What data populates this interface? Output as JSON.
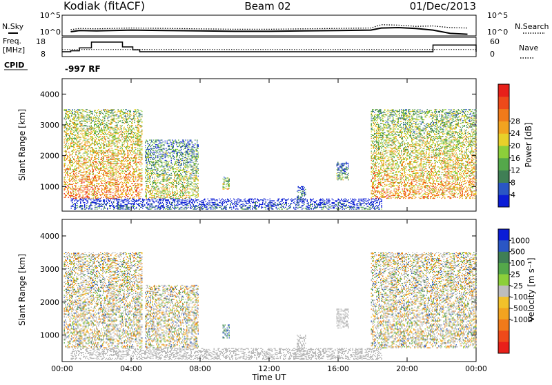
{
  "header": {
    "station": "Kodiak (fitACF)",
    "beam": "Beam 02",
    "date": "01/Dec/2013"
  },
  "top_panel": {
    "left_label_1": "N.Sky",
    "left_label_2": "Freq.",
    "left_label_3": "[MHz]",
    "left_label_4": "CPID",
    "right_label_1": "N.Search",
    "right_label_2": "Nave",
    "noise_ticks_left": [
      "10^5",
      "10^0"
    ],
    "noise_ticks_right": [
      "10^5",
      "10^0"
    ],
    "freq_ticks": [
      "18",
      "8"
    ],
    "nave_ticks": [
      "60",
      "0"
    ],
    "cpid_text": "-997 RF"
  },
  "colors": {
    "power_scale": [
      "#0b1cd6",
      "#2a56c4",
      "#3f7f55",
      "#54a84a",
      "#8ccf3a",
      "#e8d02a",
      "#f2a320",
      "#f07a1a",
      "#ee4a1a",
      "#e8201a"
    ],
    "velocity_scale": [
      "#0b1cd6",
      "#2a56c4",
      "#3f7f55",
      "#54a84a",
      "#8ccf3a",
      "#bdbdbd",
      "#f2c12a",
      "#f2a320",
      "#f07a1a",
      "#ee4a1a",
      "#e8201a"
    ],
    "ground_scatter": "#b8b8b8"
  },
  "chart_data": [
    {
      "type": "line",
      "name": "noise",
      "x_unit": "hours UT",
      "series": [
        {
          "name": "N.Sky",
          "x": [
            0.5,
            1,
            2,
            4,
            6,
            8,
            10,
            12,
            14,
            16,
            17.9,
            18.5,
            19.5,
            20.5,
            21.5,
            22.5,
            23.5
          ],
          "y": [
            1.0,
            1.3,
            1.2,
            1.4,
            1.3,
            1.2,
            1.1,
            1.1,
            1.2,
            1.3,
            1.4,
            1.9,
            2.0,
            1.8,
            1.4,
            0.6,
            0.4
          ]
        },
        {
          "name": "N.Search",
          "x": [
            0.5,
            1,
            2,
            4,
            6,
            8,
            10,
            12,
            14,
            16,
            17.9,
            18.5,
            19.5,
            20.5,
            21.5,
            22.5,
            23.5
          ],
          "y": [
            1.5,
            1.8,
            1.7,
            1.9,
            1.8,
            1.7,
            1.6,
            1.6,
            1.7,
            1.8,
            1.9,
            2.7,
            2.6,
            2.3,
            2.4,
            2.0,
            1.9
          ]
        }
      ]
    },
    {
      "type": "line",
      "name": "frequency",
      "series": [
        {
          "name": "Freq.",
          "x": [
            0.0,
            0.5,
            1.0,
            1.7,
            3.5,
            4.1,
            4.5,
            20.9,
            21.5,
            24
          ],
          "y": [
            10.5,
            11.0,
            12.5,
            15.5,
            13.0,
            11.5,
            10.5,
            10.5,
            14.0,
            10.5
          ]
        },
        {
          "name": "Nave",
          "x": [
            0,
            24
          ],
          "y": [
            22,
            22
          ]
        }
      ]
    },
    {
      "type": "heatmap",
      "name": "power",
      "xlim": [
        0,
        24
      ],
      "ylim": [
        200,
        4500
      ],
      "xlabel": "",
      "ylabel": "Slant Range [km]",
      "x_ticks": [
        "00:00",
        "04:00",
        "08:00",
        "12:00",
        "16:00",
        "20:00",
        "00:00"
      ],
      "y_ticks": [
        1000,
        2000,
        3000,
        4000
      ],
      "colorbar_label": "Power [dB]",
      "colorbar_ticks": [
        4,
        8,
        12,
        16,
        20,
        24,
        28
      ],
      "scatter_regions": [
        {
          "t0": 0.1,
          "t1": 4.6,
          "r0": 600,
          "r1": 3500,
          "intensity": 0.75
        },
        {
          "t0": 4.8,
          "t1": 7.9,
          "r0": 600,
          "r1": 2500,
          "intensity": 0.55
        },
        {
          "t0": 9.3,
          "t1": 9.7,
          "r0": 900,
          "r1": 1300,
          "intensity": 0.6
        },
        {
          "t0": 13.6,
          "t1": 14.1,
          "r0": 500,
          "r1": 1000,
          "intensity": 0.35
        },
        {
          "t0": 15.9,
          "t1": 16.6,
          "r0": 1200,
          "r1": 1800,
          "intensity": 0.4
        },
        {
          "t0": 17.9,
          "t1": 24.0,
          "r0": 600,
          "r1": 3500,
          "intensity": 0.7
        },
        {
          "t0": 0.5,
          "t1": 18.5,
          "r0": 250,
          "r1": 600,
          "intensity": 0.2
        }
      ]
    },
    {
      "type": "heatmap",
      "name": "velocity",
      "xlim": [
        0,
        24
      ],
      "ylim": [
        200,
        4500
      ],
      "xlabel": "Time UT",
      "ylabel": "Slant Range [km]",
      "x_ticks": [
        "00:00",
        "04:00",
        "08:00",
        "12:00",
        "16:00",
        "20:00",
        "00:00"
      ],
      "y_ticks": [
        1000,
        2000,
        3000,
        4000
      ],
      "colorbar_label": "Velocity [m s⁻¹]",
      "colorbar_ticks": [
        1000,
        500,
        100,
        25,
        -25,
        -100,
        -500,
        -1000
      ],
      "scatter_regions": [
        {
          "t0": 0.1,
          "t1": 4.6,
          "r0": 600,
          "r1": 3500,
          "kind": "mixed"
        },
        {
          "t0": 4.8,
          "t1": 7.9,
          "r0": 600,
          "r1": 2500,
          "kind": "mixed"
        },
        {
          "t0": 9.3,
          "t1": 9.7,
          "r0": 900,
          "r1": 1300,
          "kind": "positive"
        },
        {
          "t0": 13.6,
          "t1": 14.1,
          "r0": 500,
          "r1": 1000,
          "kind": "ground"
        },
        {
          "t0": 15.9,
          "t1": 16.6,
          "r0": 1200,
          "r1": 1800,
          "kind": "ground"
        },
        {
          "t0": 17.9,
          "t1": 24.0,
          "r0": 600,
          "r1": 3500,
          "kind": "mixed"
        },
        {
          "t0": 0.5,
          "t1": 18.5,
          "r0": 250,
          "r1": 600,
          "kind": "ground"
        }
      ]
    }
  ]
}
